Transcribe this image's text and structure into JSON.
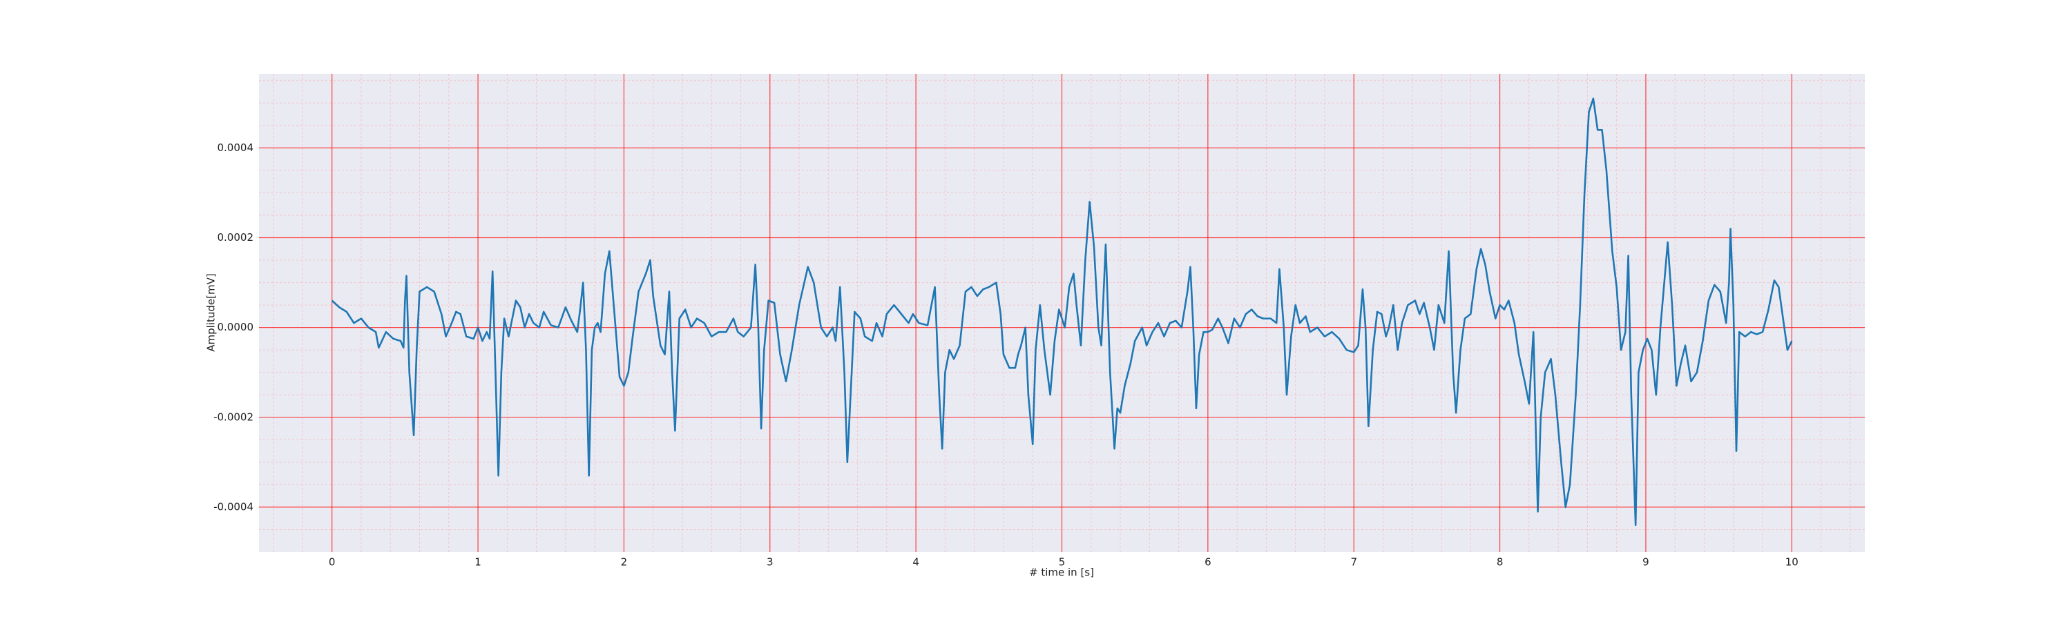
{
  "chart_data": {
    "type": "line",
    "xlabel": "# time in [s]",
    "ylabel": "Amplitude[mV]",
    "xlim": [
      -0.5,
      10.5
    ],
    "ylim": [
      -0.0005,
      0.000565
    ],
    "xticks": [
      0,
      1,
      2,
      3,
      4,
      5,
      6,
      7,
      8,
      9,
      10
    ],
    "yticks": [
      {
        "value": -0.0004,
        "label": "-0.0004"
      },
      {
        "value": -0.0002,
        "label": "-0.0002"
      },
      {
        "value": 0,
        "label": "0.0000"
      },
      {
        "value": 0.0002,
        "label": "0.0002"
      },
      {
        "value": 0.0004,
        "label": "0.0004"
      }
    ],
    "xminor_ticks": [
      -0.4,
      -0.2,
      0,
      0.2,
      0.4,
      0.6,
      0.8,
      1,
      1.2,
      1.4,
      1.6,
      1.8,
      2,
      2.2,
      2.4,
      2.6,
      2.8,
      3,
      3.2,
      3.4,
      3.6,
      3.8,
      4,
      4.2,
      4.4,
      4.6,
      4.8,
      5,
      5.2,
      5.4,
      5.6,
      5.8,
      6,
      6.2,
      6.4,
      6.6,
      6.8,
      7,
      7.2,
      7.4,
      7.6,
      7.8,
      8,
      8.2,
      8.4,
      8.6,
      8.8,
      9,
      9.2,
      9.4,
      9.6,
      9.8,
      10,
      10.2,
      10.4
    ],
    "yminor_ticks": [
      -0.00045,
      -0.0004,
      -0.00035,
      -0.0003,
      -0.00025,
      -0.0002,
      -0.00015,
      -0.0001,
      -5e-05,
      0,
      5e-05,
      0.0001,
      0.00015,
      0.0002,
      0.00025,
      0.0003,
      0.00035,
      0.0004,
      0.00045,
      0.0005,
      0.00055
    ],
    "grid": true,
    "grid_color": "#ff0000",
    "minor_grid_color": "#ff9a9a",
    "background": "#eaeaf2",
    "series": [
      {
        "color": "#1f77b4",
        "x": [
          0,
          0.05,
          0.1,
          0.15,
          0.2,
          0.25,
          0.3,
          0.32,
          0.37,
          0.42,
          0.47,
          0.49,
          0.5,
          0.51,
          0.53,
          0.56,
          0.58,
          0.6,
          0.65,
          0.7,
          0.75,
          0.78,
          0.82,
          0.85,
          0.88,
          0.92,
          0.97,
          1,
          1.03,
          1.06,
          1.08,
          1.1,
          1.12,
          1.14,
          1.16,
          1.18,
          1.21,
          1.26,
          1.29,
          1.32,
          1.35,
          1.38,
          1.42,
          1.45,
          1.5,
          1.55,
          1.6,
          1.64,
          1.68,
          1.7,
          1.72,
          1.74,
          1.76,
          1.78,
          1.8,
          1.82,
          1.84,
          1.87,
          1.9,
          1.93,
          1.97,
          2,
          2.03,
          2.06,
          2.1,
          2.15,
          2.18,
          2.2,
          2.25,
          2.28,
          2.31,
          2.33,
          2.35,
          2.38,
          2.42,
          2.46,
          2.5,
          2.55,
          2.6,
          2.65,
          2.7,
          2.75,
          2.78,
          2.82,
          2.87,
          2.9,
          2.92,
          2.94,
          2.96,
          2.99,
          3.03,
          3.07,
          3.11,
          3.15,
          3.2,
          3.26,
          3.3,
          3.35,
          3.39,
          3.43,
          3.45,
          3.48,
          3.51,
          3.53,
          3.56,
          3.58,
          3.62,
          3.65,
          3.7,
          3.73,
          3.77,
          3.8,
          3.85,
          3.9,
          3.95,
          3.98,
          4.02,
          4.08,
          4.13,
          4.16,
          4.18,
          4.2,
          4.23,
          4.26,
          4.3,
          4.34,
          4.38,
          4.42,
          4.46,
          4.5,
          4.55,
          4.58,
          4.6,
          4.64,
          4.68,
          4.7,
          4.72,
          4.75,
          4.77,
          4.8,
          4.82,
          4.85,
          4.88,
          4.92,
          4.95,
          4.98,
          5.02,
          5.05,
          5.08,
          5.1,
          5.13,
          5.16,
          5.19,
          5.22,
          5.25,
          5.27,
          5.3,
          5.33,
          5.36,
          5.38,
          5.4,
          5.43,
          5.47,
          5.5,
          5.55,
          5.58,
          5.62,
          5.66,
          5.7,
          5.74,
          5.78,
          5.82,
          5.86,
          5.88,
          5.9,
          5.92,
          5.94,
          5.97,
          6,
          6.03,
          6.07,
          6.1,
          6.14,
          6.18,
          6.22,
          6.26,
          6.3,
          6.34,
          6.38,
          6.43,
          6.47,
          6.49,
          6.52,
          6.54,
          6.57,
          6.6,
          6.63,
          6.67,
          6.7,
          6.75,
          6.8,
          6.85,
          6.9,
          6.95,
          7,
          7.03,
          7.06,
          7.08,
          7.1,
          7.13,
          7.16,
          7.19,
          7.22,
          7.24,
          7.27,
          7.3,
          7.33,
          7.37,
          7.42,
          7.45,
          7.48,
          7.52,
          7.55,
          7.58,
          7.62,
          7.65,
          7.68,
          7.7,
          7.73,
          7.76,
          7.8,
          7.84,
          7.87,
          7.9,
          7.93,
          7.97,
          8,
          8.03,
          8.06,
          8.1,
          8.13,
          8.17,
          8.2,
          8.23,
          8.26,
          8.28,
          8.31,
          8.35,
          8.38,
          8.42,
          8.45,
          8.48,
          8.52,
          8.55,
          8.58,
          8.61,
          8.64,
          8.67,
          8.7,
          8.73,
          8.77,
          8.8,
          8.83,
          8.86,
          8.88,
          8.9,
          8.93,
          8.95,
          8.98,
          9.01,
          9.04,
          9.07,
          9.1,
          9.15,
          9.18,
          9.21,
          9.24,
          9.27,
          9.31,
          9.35,
          9.39,
          9.43,
          9.47,
          9.51,
          9.55,
          9.57,
          9.58,
          9.6,
          9.62,
          9.64,
          9.68,
          9.72,
          9.76,
          9.8,
          9.84,
          9.88,
          9.91,
          9.94,
          9.97,
          10
        ],
        "values": [
          6e-05,
          4.5e-05,
          3.5e-05,
          1e-05,
          2e-05,
          0,
          -1e-05,
          -4.5e-05,
          -1e-05,
          -2.5e-05,
          -3e-05,
          -4.5e-05,
          6e-05,
          0.000115,
          -0.0001,
          -0.00024,
          -5e-05,
          8e-05,
          9e-05,
          8e-05,
          3e-05,
          -2e-05,
          1e-05,
          3.5e-05,
          3e-05,
          -2e-05,
          -2.5e-05,
          0,
          -3e-05,
          -1e-05,
          -2.5e-05,
          0.000125,
          -0.0001,
          -0.00033,
          -0.0001,
          2e-05,
          -2e-05,
          6e-05,
          4.5e-05,
          0,
          3e-05,
          1e-05,
          0,
          3.5e-05,
          5e-06,
          0,
          4.5e-05,
          1.5e-05,
          -1e-05,
          4e-05,
          0.0001,
          -5e-05,
          -0.00033,
          -5e-05,
          0,
          1e-05,
          -1e-05,
          0.00012,
          0.00017,
          5e-05,
          -0.00011,
          -0.00013,
          -0.0001,
          -2e-05,
          8e-05,
          0.00012,
          0.00015,
          7e-05,
          -4e-05,
          -6e-05,
          8e-05,
          -0.0001,
          -0.00023,
          2e-05,
          4e-05,
          0,
          2e-05,
          1e-05,
          -2e-05,
          -1e-05,
          -1e-05,
          2e-05,
          -1e-05,
          -2e-05,
          0,
          0.00014,
          0,
          -0.000225,
          -5e-05,
          6e-05,
          5.5e-05,
          -6e-05,
          -0.00012,
          -5e-05,
          5e-05,
          0.000135,
          0.0001,
          0,
          -2e-05,
          0,
          -3e-05,
          9e-05,
          -0.0001,
          -0.0003,
          -0.0001,
          3.5e-05,
          2e-05,
          -2e-05,
          -3e-05,
          1e-05,
          -2e-05,
          3e-05,
          5e-05,
          3e-05,
          1e-05,
          3e-05,
          1e-05,
          5e-06,
          9e-05,
          -0.00015,
          -0.00027,
          -0.0001,
          -5e-05,
          -7e-05,
          -4e-05,
          8e-05,
          9e-05,
          7e-05,
          8.5e-05,
          9e-05,
          0.0001,
          3e-05,
          -6e-05,
          -9e-05,
          -9e-05,
          -6e-05,
          -4e-05,
          0,
          -0.00015,
          -0.00026,
          -5e-05,
          5e-05,
          -5e-05,
          -0.00015,
          -3e-05,
          4e-05,
          0,
          9e-05,
          0.00012,
          5e-05,
          -4e-05,
          0.00015,
          0.00028,
          0.00018,
          0,
          -4e-05,
          0.000185,
          -0.0001,
          -0.00027,
          -0.00018,
          -0.00019,
          -0.00013,
          -8e-05,
          -3e-05,
          0,
          -4e-05,
          -1e-05,
          1e-05,
          -2e-05,
          1e-05,
          1.5e-05,
          0,
          8e-05,
          0.000135,
          0,
          -0.00018,
          -6e-05,
          -1e-05,
          -1e-05,
          -5e-06,
          2e-05,
          0,
          -3.5e-05,
          2e-05,
          0,
          3e-05,
          4e-05,
          2.5e-05,
          2e-05,
          2e-05,
          1e-05,
          0.00013,
          0,
          -0.00015,
          -2e-05,
          5e-05,
          1e-05,
          2.5e-05,
          -1e-05,
          0,
          -2e-05,
          -1e-05,
          -2.5e-05,
          -5e-05,
          -5.5e-05,
          -4e-05,
          8.5e-05,
          0,
          -0.00022,
          -5e-05,
          3.5e-05,
          3e-05,
          -2e-05,
          0,
          5e-05,
          -5e-05,
          1e-05,
          5e-05,
          6e-05,
          3e-05,
          5.5e-05,
          0,
          -5e-05,
          5e-05,
          1e-05,
          0.00017,
          -0.0001,
          -0.00019,
          -5e-05,
          2e-05,
          3e-05,
          0.00013,
          0.000175,
          0.00014,
          8e-05,
          2e-05,
          5e-05,
          4e-05,
          6e-05,
          1e-05,
          -6e-05,
          -0.00012,
          -0.00017,
          -1e-05,
          -0.00041,
          -0.0002,
          -0.0001,
          -7e-05,
          -0.00015,
          -0.0003,
          -0.0004,
          -0.00035,
          -0.00015,
          5e-05,
          0.0003,
          0.00048,
          0.00051,
          0.00044,
          0.00044,
          0.00035,
          0.00017,
          9e-05,
          -5e-05,
          -1e-05,
          0.00016,
          -0.00015,
          -0.00044,
          -0.0001,
          -5e-05,
          -2.5e-05,
          -5e-05,
          -0.00015,
          0,
          0.00019,
          5e-05,
          -0.00013,
          -8e-05,
          -4e-05,
          -0.00012,
          -0.0001,
          -3e-05,
          6e-05,
          9.5e-05,
          8e-05,
          1e-05,
          0.0001,
          0.00022,
          5e-05,
          -0.000275,
          -1e-05,
          -2e-05,
          -1e-05,
          -1.5e-05,
          -1e-05,
          4e-05,
          0.000105,
          9e-05,
          2e-05,
          -5e-05,
          -3e-05
        ]
      }
    ]
  }
}
